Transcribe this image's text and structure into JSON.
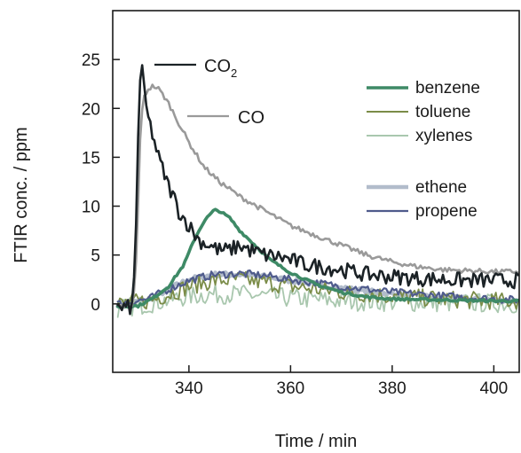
{
  "chart_data": {
    "type": "line",
    "xlabel": "Time / min",
    "ylabel": "FTIR conc. / ppm",
    "xlim": [
      325,
      405
    ],
    "ylim": [
      -7,
      30
    ],
    "xticks": [
      340,
      360,
      380,
      400
    ],
    "yticks": [
      0,
      5,
      10,
      15,
      20,
      25
    ],
    "grid": false,
    "legend_position": "right",
    "annotations": [
      {
        "series": "CO2",
        "label_main": "CO",
        "label_sub": "2"
      },
      {
        "series": "CO",
        "label_main": "CO",
        "label_sub": ""
      }
    ],
    "series": [
      {
        "id": "CO2",
        "color": "#1b2226",
        "width": 2.6,
        "noise": 0.8,
        "x": [
          326,
          329,
          329.6,
          330.2,
          330.7,
          331.3,
          332,
          333,
          334,
          335,
          336,
          337,
          338,
          340,
          342,
          344,
          346,
          348,
          350,
          352,
          355,
          358,
          360,
          363,
          366,
          370,
          375,
          380,
          385,
          390,
          395,
          400,
          405
        ],
        "y": [
          -0.5,
          -0.3,
          8,
          22,
          24.5,
          21,
          19,
          17,
          15,
          13.5,
          12,
          11,
          9.5,
          8,
          6.5,
          6,
          5.5,
          5.5,
          6,
          5.5,
          5,
          4.8,
          4.5,
          4,
          3.8,
          3.5,
          3,
          2.8,
          2.6,
          2.5,
          2.4,
          2.4,
          2.4
        ]
      },
      {
        "id": "CO",
        "color": "#9a9a9a",
        "width": 2.6,
        "noise": 0.25,
        "x": [
          326,
          329,
          329.7,
          330.4,
          331,
          332,
          333,
          334,
          335,
          336,
          338,
          340,
          343,
          346,
          350,
          355,
          360,
          365,
          370,
          375,
          380,
          385,
          390,
          395,
          400,
          405
        ],
        "y": [
          -0.3,
          -0.2,
          5,
          17,
          21,
          22,
          22.3,
          22,
          21.3,
          20.5,
          18.5,
          16.5,
          14,
          12.5,
          11,
          9.5,
          8,
          7,
          6,
          5,
          4.3,
          3.8,
          3.5,
          3.4,
          3.3,
          3.3
        ]
      },
      {
        "id": "benzene",
        "name": "benzene",
        "color": "#3e8a66",
        "width": 3.6,
        "noise": 0.12,
        "x": [
          326,
          330,
          333,
          336,
          339,
          341,
          343,
          345,
          346,
          348,
          350,
          353,
          356,
          360,
          365,
          370,
          375,
          380,
          390,
          400,
          405
        ],
        "y": [
          -0.3,
          -0.2,
          0.6,
          1.8,
          4,
          6.5,
          8.5,
          9.6,
          9.5,
          8.8,
          7.5,
          6,
          4.5,
          3.2,
          2,
          1.2,
          0.7,
          0.5,
          0.4,
          0.3,
          0.3
        ]
      },
      {
        "id": "toluene",
        "name": "toluene",
        "color": "#7b8c48",
        "width": 1.8,
        "noise": 0.9,
        "x": [
          326,
          332,
          336,
          340,
          345,
          350,
          355,
          360,
          370,
          380,
          390,
          400,
          405
        ],
        "y": [
          0,
          0.3,
          1,
          1.8,
          2.4,
          2.5,
          2.2,
          1.8,
          1.2,
          0.8,
          0.5,
          0.3,
          0.3
        ]
      },
      {
        "id": "xylenes",
        "name": "xylenes",
        "color": "#a9c7ae",
        "width": 1.8,
        "noise": 1.0,
        "x": [
          326,
          332,
          336,
          340,
          345,
          350,
          355,
          360,
          370,
          380,
          390,
          400,
          405
        ],
        "y": [
          -0.5,
          0,
          0.4,
          0.8,
          1,
          1,
          0.8,
          0.6,
          0.3,
          0.2,
          0.1,
          0.1,
          0
        ]
      },
      {
        "id": "ethene",
        "name": "ethene",
        "color": "#b2bccb",
        "width": 4.6,
        "noise": 0.25,
        "x": [
          326,
          332,
          336,
          340,
          345,
          350,
          355,
          360,
          370,
          380,
          390,
          400,
          405
        ],
        "y": [
          0,
          0.4,
          1.5,
          2.5,
          3,
          3,
          2.8,
          2.4,
          1.6,
          1,
          0.6,
          0.4,
          0.3
        ]
      },
      {
        "id": "propene",
        "name": "propene",
        "color": "#4f5b8c",
        "width": 2.2,
        "noise": 0.4,
        "x": [
          326,
          332,
          336,
          340,
          345,
          350,
          355,
          360,
          370,
          380,
          390,
          400,
          405
        ],
        "y": [
          0,
          0.5,
          1.5,
          2.4,
          3,
          3.1,
          2.9,
          2.5,
          1.8,
          1.2,
          0.8,
          0.5,
          0.4
        ]
      }
    ],
    "legend": [
      {
        "series": "benzene",
        "label": "benzene"
      },
      {
        "series": "toluene",
        "label": "toluene"
      },
      {
        "series": "xylenes",
        "label": "xylenes"
      },
      {
        "series": "ethene",
        "label": "ethene"
      },
      {
        "series": "propene",
        "label": "propene"
      }
    ]
  }
}
